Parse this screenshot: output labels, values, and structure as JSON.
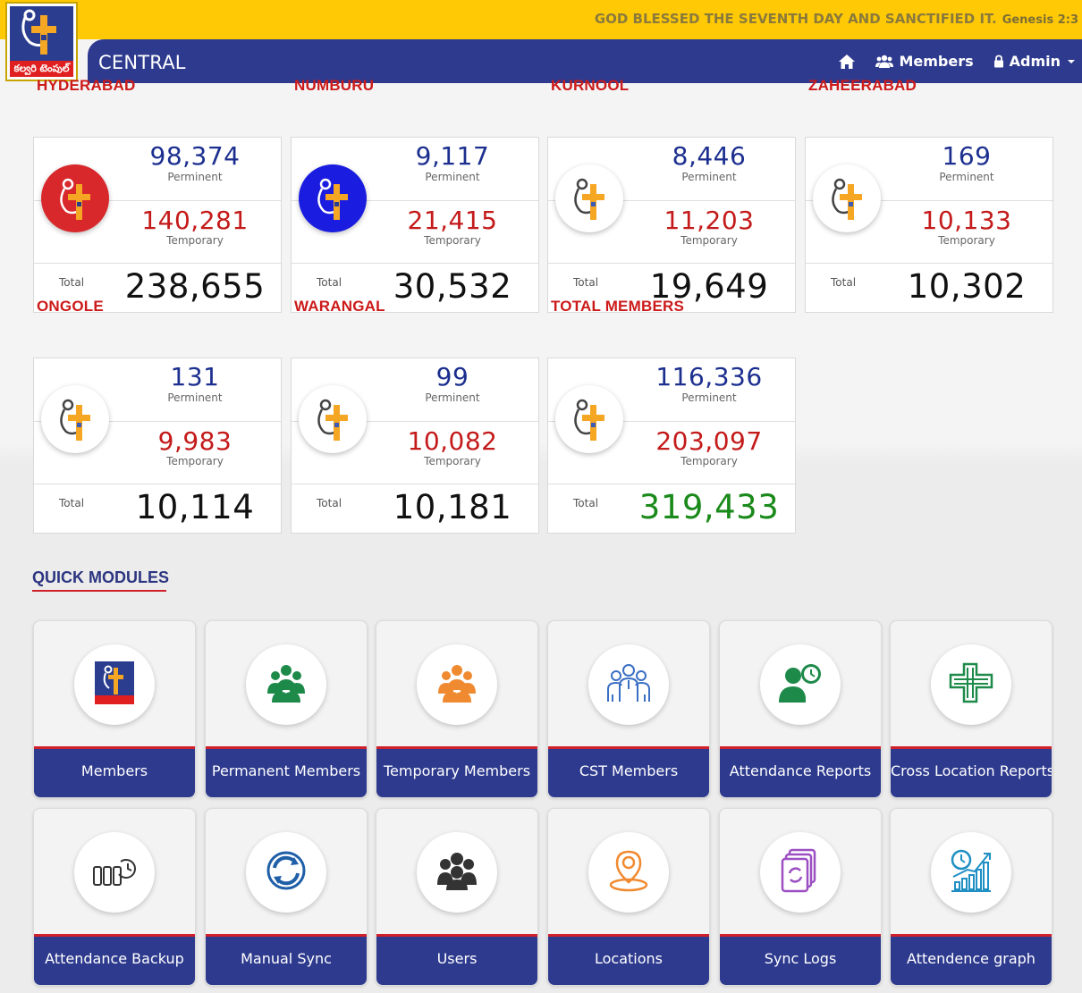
{
  "header": {
    "verse": "GOD BLESSED THE SEVENTH DAY AND SANCTIFIED IT.",
    "verse_ref": "Genesis 2:3",
    "logo_text": "కల్వరి టెంపుల్",
    "title": "CENTRAL",
    "nav": {
      "home_icon": "home-icon",
      "members_label": "Members",
      "admin_label": "Admin"
    }
  },
  "regions": [
    {
      "name": "HYDERABAD",
      "permanent": "98,374",
      "permanent_label": "Perminent",
      "temporary": "140,281",
      "temporary_label": "Temporary",
      "total_label": "Total",
      "total": "238,655",
      "logo_style": "red"
    },
    {
      "name": "NUMBURU",
      "permanent": "9,117",
      "permanent_label": "Perminent",
      "temporary": "21,415",
      "temporary_label": "Temporary",
      "total_label": "Total",
      "total": "30,532",
      "logo_style": "blue"
    },
    {
      "name": "KURNOOL",
      "permanent": "8,446",
      "permanent_label": "Perminent",
      "temporary": "11,203",
      "temporary_label": "Temporary",
      "total_label": "Total",
      "total": "19,649",
      "logo_style": "white"
    },
    {
      "name": "ZAHEERABAD",
      "permanent": "169",
      "permanent_label": "Perminent",
      "temporary": "10,133",
      "temporary_label": "Temporary",
      "total_label": "Total",
      "total": "10,302",
      "logo_style": "white"
    },
    {
      "name": "ONGOLE",
      "permanent": "131",
      "permanent_label": "Perminent",
      "temporary": "9,983",
      "temporary_label": "Temporary",
      "total_label": "Total",
      "total": "10,114",
      "logo_style": "white"
    },
    {
      "name": "WARANGAL",
      "permanent": "99",
      "permanent_label": "Perminent",
      "temporary": "10,082",
      "temporary_label": "Temporary",
      "total_label": "Total",
      "total": "10,181",
      "logo_style": "white"
    },
    {
      "name": "TOTAL MEMBERS",
      "permanent": "116,336",
      "permanent_label": "Perminent",
      "temporary": "203,097",
      "temporary_label": "Temporary",
      "total_label": "Total",
      "total": "319,433",
      "logo_style": "white"
    }
  ],
  "quick_modules": {
    "title": "QUICK MODULES",
    "items": [
      {
        "label": "Members",
        "icon": "church-logo-icon",
        "color": "#2a3d8f"
      },
      {
        "label": "Permanent Members",
        "icon": "people-group-icon",
        "color": "#1e8a4a"
      },
      {
        "label": "Temporary Members",
        "icon": "people-group-icon",
        "color": "#f08a30"
      },
      {
        "label": "CST Members",
        "icon": "team-outline-icon",
        "color": "#3a6fc4"
      },
      {
        "label": "Attendance Reports",
        "icon": "user-clock-icon",
        "color": "#1e8a4a"
      },
      {
        "label": "Cross Location Reports",
        "icon": "cross-grid-icon",
        "color": "#1e8a4a"
      },
      {
        "label": "Attendance Backup",
        "icon": "backup-icon",
        "color": "#333333"
      },
      {
        "label": "Manual Sync",
        "icon": "sync-icon",
        "color": "#1f5fa8"
      },
      {
        "label": "Users",
        "icon": "users-icon",
        "color": "#333333"
      },
      {
        "label": "Locations",
        "icon": "location-pin-icon",
        "color": "#f08a30"
      },
      {
        "label": "Sync Logs",
        "icon": "sync-logs-icon",
        "color": "#9b4fc2"
      },
      {
        "label": "Attendence graph",
        "icon": "attendance-graph-icon",
        "color": "#1f8fc4"
      }
    ]
  }
}
